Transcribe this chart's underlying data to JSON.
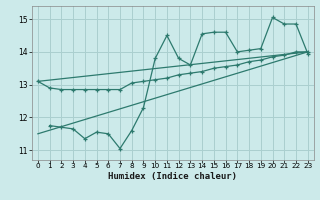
{
  "xlabel": "Humidex (Indice chaleur)",
  "bg_color": "#cceaea",
  "grid_color": "#aacfcf",
  "line_color": "#2d7a6e",
  "xlim": [
    -0.5,
    23.5
  ],
  "ylim": [
    10.7,
    15.4
  ],
  "yticks": [
    11,
    12,
    13,
    14,
    15
  ],
  "xticks": [
    0,
    1,
    2,
    3,
    4,
    5,
    6,
    7,
    8,
    9,
    10,
    11,
    12,
    13,
    14,
    15,
    16,
    17,
    18,
    19,
    20,
    21,
    22,
    23
  ],
  "line1_x": [
    0,
    23
  ],
  "line1_y": [
    13.1,
    14.0
  ],
  "line2_x": [
    0,
    23
  ],
  "line2_y": [
    11.5,
    14.0
  ],
  "line3_x": [
    0,
    1,
    2,
    3,
    4,
    5,
    6,
    7,
    8,
    9,
    10,
    11,
    12,
    13,
    14,
    15,
    16,
    17,
    18,
    19,
    20,
    21,
    22,
    23
  ],
  "line3_y": [
    13.1,
    12.9,
    12.85,
    12.85,
    12.85,
    12.85,
    12.85,
    12.85,
    13.05,
    13.1,
    13.15,
    13.2,
    13.3,
    13.35,
    13.4,
    13.5,
    13.55,
    13.6,
    13.7,
    13.75,
    13.85,
    13.9,
    14.0,
    14.0
  ],
  "line4_x": [
    1,
    2,
    3,
    4,
    5,
    6,
    7,
    8,
    9,
    10,
    11,
    12,
    13,
    14,
    15,
    16,
    17,
    18,
    19,
    20,
    21,
    22,
    23
  ],
  "line4_y": [
    11.75,
    11.7,
    11.65,
    11.35,
    11.55,
    11.5,
    11.05,
    11.6,
    12.3,
    13.8,
    14.5,
    13.8,
    13.6,
    14.55,
    14.6,
    14.6,
    14.0,
    14.05,
    14.1,
    15.05,
    14.85,
    14.85,
    13.95
  ]
}
